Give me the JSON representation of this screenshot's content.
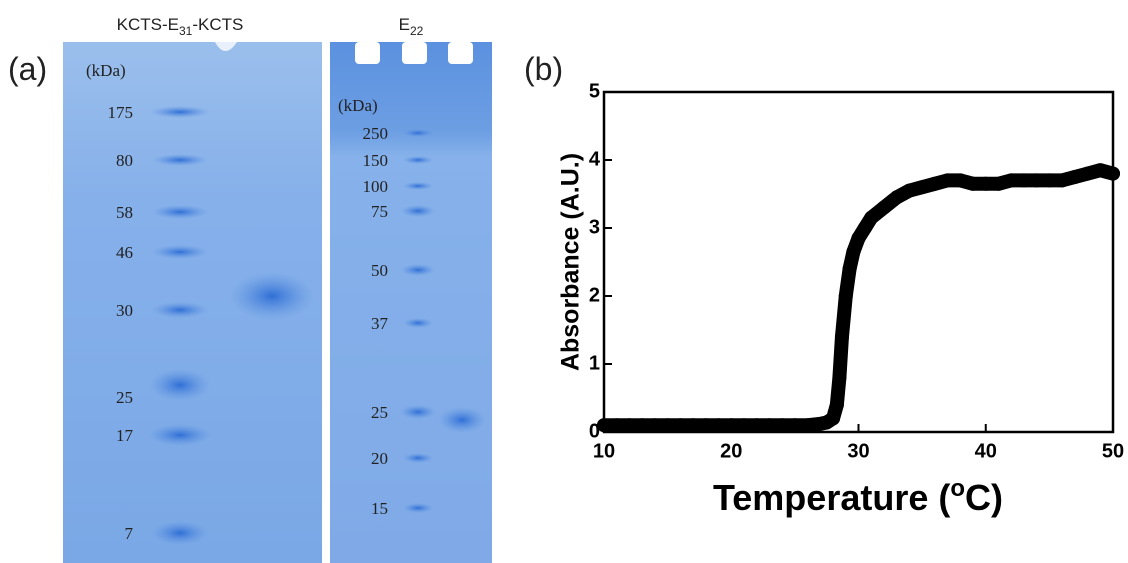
{
  "panel_labels": [
    "(a)",
    "(b)"
  ],
  "gels": [
    {
      "title_parts": [
        "KCTS-E",
        "31",
        "-KCTS"
      ],
      "unit": "(kDa)",
      "markers": [
        "175",
        "80",
        "58",
        "46",
        "30",
        "25",
        "17",
        "7"
      ]
    },
    {
      "title_parts": [
        "E",
        "22"
      ],
      "unit": "(kDa)",
      "markers": [
        "250",
        "150",
        "100",
        "75",
        "50",
        "37",
        "25",
        "20",
        "15"
      ]
    }
  ],
  "chart_data": {
    "type": "scatter",
    "xlabel_parts": [
      "Temperature (",
      "o",
      "C)"
    ],
    "ylabel": "Absorbance (A.U.)",
    "x": [
      10,
      11,
      12,
      13,
      14,
      15,
      16,
      17,
      18,
      19,
      20,
      21,
      22,
      23,
      24,
      25,
      26,
      27,
      27.5,
      28,
      28.3,
      28.5,
      28.7,
      29,
      29.3,
      29.6,
      30,
      30.5,
      31,
      32,
      33,
      34,
      35,
      36,
      37,
      38,
      39,
      40,
      41,
      42,
      43,
      44,
      45,
      46,
      47,
      48,
      49,
      50
    ],
    "values": [
      0.1,
      0.1,
      0.1,
      0.1,
      0.1,
      0.1,
      0.1,
      0.1,
      0.1,
      0.1,
      0.1,
      0.1,
      0.1,
      0.1,
      0.1,
      0.1,
      0.1,
      0.12,
      0.14,
      0.2,
      0.4,
      0.8,
      1.4,
      2.0,
      2.4,
      2.65,
      2.85,
      3.0,
      3.15,
      3.3,
      3.45,
      3.55,
      3.6,
      3.65,
      3.7,
      3.7,
      3.65,
      3.65,
      3.65,
      3.7,
      3.7,
      3.7,
      3.7,
      3.7,
      3.75,
      3.8,
      3.85,
      3.8
    ],
    "color": "#000000",
    "xlim": [
      10,
      50
    ],
    "ylim": [
      0,
      5
    ],
    "xticks": [
      10,
      20,
      30,
      40,
      50
    ],
    "yticks": [
      0,
      1,
      2,
      3,
      4,
      5
    ]
  }
}
